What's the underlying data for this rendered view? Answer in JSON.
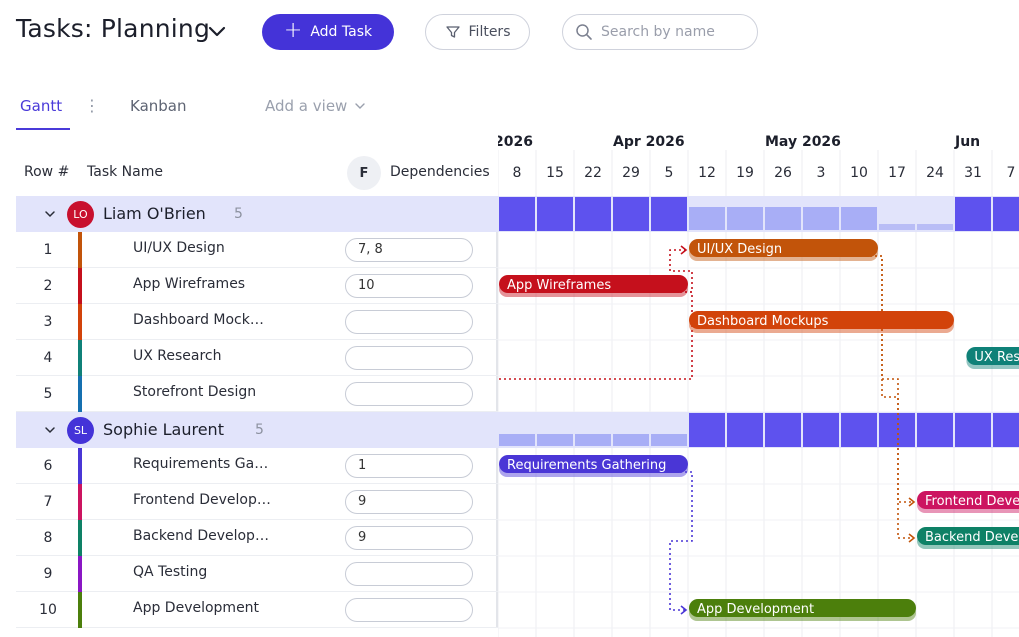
{
  "header": {
    "title": "Tasks: Planning",
    "add_task_label": "Add Task",
    "filters_label": "Filters",
    "search_placeholder": "Search by name",
    "accent": "#4433d8"
  },
  "views": {
    "tabs": [
      {
        "label": "Gantt",
        "active": true
      },
      {
        "label": "Kanban",
        "active": false
      }
    ],
    "add_view_label": "Add a view"
  },
  "columns": {
    "row": "Row #",
    "task_name": "Task Name",
    "f_badge": "F",
    "dependencies": "Dependencies"
  },
  "timeline": {
    "months": [
      {
        "label": "2026",
        "week_index": 0
      },
      {
        "label": "Apr 2026",
        "week_index": 4
      },
      {
        "label": "May 2026",
        "week_index": 8
      },
      {
        "label": "Jun",
        "week_index": 13
      }
    ],
    "weeks": [
      "8",
      "15",
      "22",
      "29",
      "5",
      "12",
      "19",
      "26",
      "3",
      "10",
      "17",
      "24",
      "31",
      "7"
    ]
  },
  "groups": [
    {
      "name": "Liam O'Brien",
      "initials": "LO",
      "avatar_color": "#c8102e",
      "count": "5",
      "summary": {
        "full_weeks": [
          0,
          1,
          2,
          3,
          4,
          12,
          13
        ],
        "partial_weeks": [
          5,
          6,
          7,
          8,
          9
        ],
        "thin_weeks": [
          10,
          11
        ]
      },
      "tasks": [
        {
          "row": "1",
          "name": "UI/UX Design",
          "bar_label": "UI/UX Design",
          "deps": "7, 8",
          "color": "#c2540a",
          "start_week": 5,
          "end_week": 10
        },
        {
          "row": "2",
          "name": "App Wireframes",
          "bar_label": "App Wireframes",
          "deps": "10",
          "color": "#c5101c",
          "start_week": 0,
          "end_week": 5
        },
        {
          "row": "3",
          "name": "Dashboard Mock…",
          "bar_label": "Dashboard Mockups",
          "deps": "",
          "color": "#d2430a",
          "start_week": 5,
          "end_week": 12
        },
        {
          "row": "4",
          "name": "UX Research",
          "bar_label": "UX Research",
          "deps": "",
          "color": "#0f8178",
          "start_week": 12.3,
          "end_week": 15
        },
        {
          "row": "5",
          "name": "Storefront Design",
          "bar_label": "",
          "deps": "",
          "color": "#1570b0",
          "start_week": null,
          "end_week": null
        }
      ]
    },
    {
      "name": "Sophie Laurent",
      "initials": "SL",
      "avatar_color": "#4433d8",
      "count": "5",
      "summary": {
        "full_weeks": [
          5,
          6,
          7,
          8,
          9,
          10,
          11,
          12,
          13
        ],
        "partial_weeks": [
          0,
          1,
          2,
          3,
          4
        ],
        "thin_weeks": []
      },
      "tasks": [
        {
          "row": "6",
          "name": "Requirements Ga…",
          "bar_label": "Requirements Gathering",
          "deps": "1",
          "color": "#4a36d6",
          "start_week": 0,
          "end_week": 5
        },
        {
          "row": "7",
          "name": "Frontend Develop…",
          "bar_label": "Frontend Development",
          "deps": "9",
          "color": "#cc1460",
          "start_week": 11,
          "end_week": 15
        },
        {
          "row": "8",
          "name": "Backend Develop…",
          "bar_label": "Backend Development",
          "deps": "9",
          "color": "#0e8166",
          "start_week": 11,
          "end_week": 15
        },
        {
          "row": "9",
          "name": "QA Testing",
          "bar_label": "",
          "deps": "",
          "color": "#8a16c4",
          "start_week": null,
          "end_week": null
        },
        {
          "row": "10",
          "name": "App Development",
          "bar_label": "App Development",
          "deps": "",
          "color": "#4c7f0c",
          "start_week": 5,
          "end_week": 11
        }
      ]
    }
  ],
  "dependency_links": [
    {
      "from_row": "2",
      "to_row": "1"
    },
    {
      "from_row": "2",
      "to_row": "6"
    },
    {
      "from_row": "1",
      "to_row": "7"
    },
    {
      "from_row": "1",
      "to_row": "8"
    },
    {
      "from_row": "6",
      "to_row": "10"
    }
  ]
}
